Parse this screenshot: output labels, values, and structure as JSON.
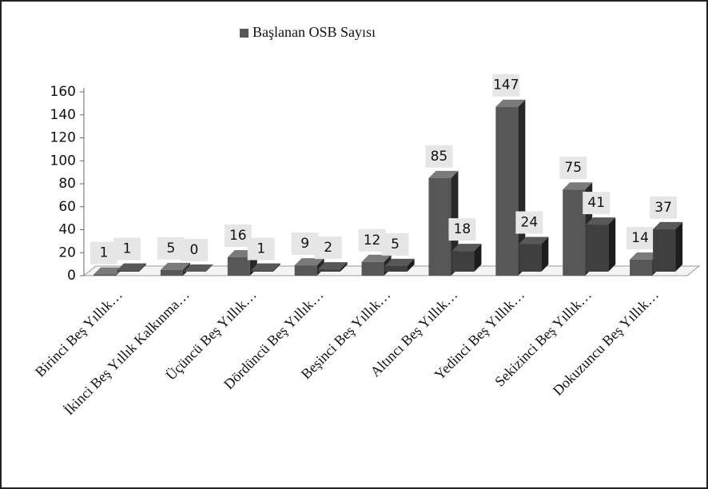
{
  "chart_data": {
    "type": "bar3d",
    "categories": [
      "Birinci Beş Yıllık…",
      "İkinci Beş Yıllık Kalkınma…",
      "Üçüncü Beş Yıllık…",
      "Dördüncü Beş Yıllık…",
      "Beşinci Beş Yıllık…",
      "Altıncı Beş Yıllık…",
      "Yedinci Beş Yıllık…",
      "Sekizinci Beş Yıllık…",
      "Dokuzuncu Beş Yıllık…"
    ],
    "series": [
      {
        "name": "Başlanan OSB Sayısı",
        "color": "#575757",
        "values": [
          1,
          5,
          16,
          9,
          12,
          85,
          147,
          75,
          14
        ]
      },
      {
        "color": "#3f3f3f",
        "values": [
          1,
          0,
          1,
          2,
          5,
          18,
          24,
          41,
          37
        ]
      }
    ],
    "ylim": [
      0,
      160
    ],
    "yticks": [
      0,
      20,
      40,
      60,
      80,
      100,
      120,
      140,
      160
    ],
    "legend": "top"
  }
}
